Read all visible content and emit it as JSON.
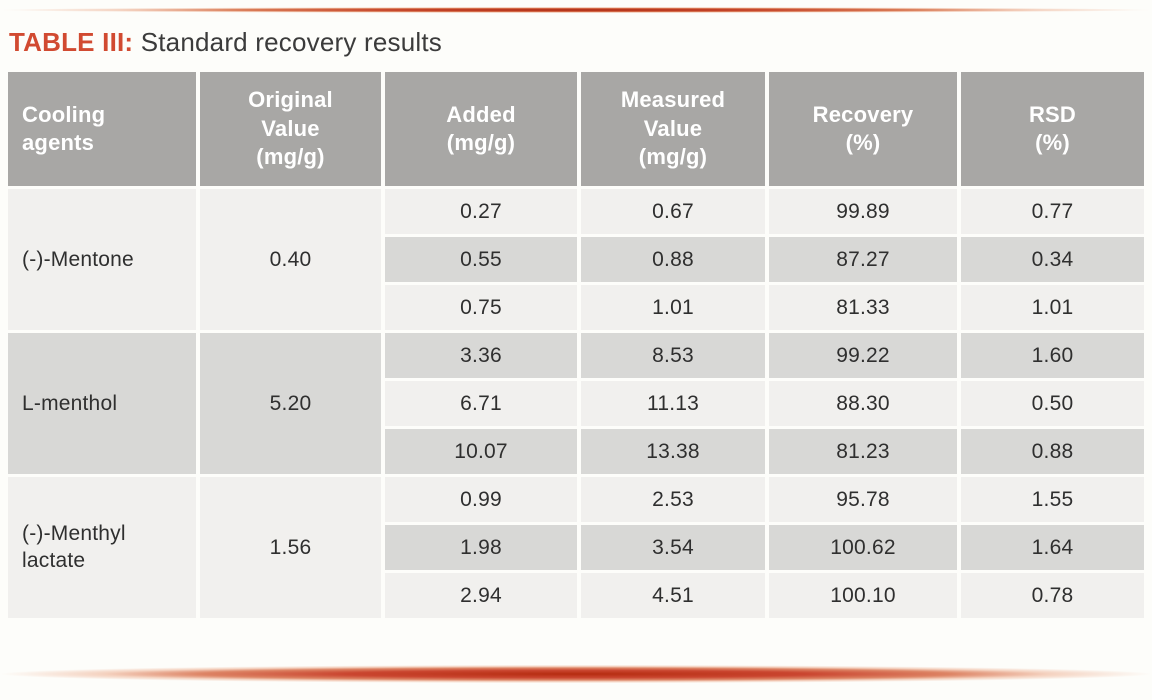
{
  "page": {
    "title": {
      "label": "TABLE III:",
      "text": "Standard recovery results"
    }
  },
  "colors": {
    "accent_red": "#d14a31",
    "header_bg": "#a8a7a5",
    "row_light": "#f1f0ee",
    "row_dark": "#d8d8d6",
    "title_text": "#3b3b3b",
    "cell_text": "#2f2f2f"
  },
  "table": {
    "columns": [
      {
        "id": "cooling_agents",
        "label": "Cooling\nagents"
      },
      {
        "id": "original_value",
        "label": "Original\nValue\n(mg/g)"
      },
      {
        "id": "added",
        "label": "Added\n(mg/g)"
      },
      {
        "id": "measured_value",
        "label": "Measured\nValue\n(mg/g)"
      },
      {
        "id": "recovery",
        "label": "Recovery\n(%)"
      },
      {
        "id": "rsd",
        "label": "RSD\n(%)"
      }
    ],
    "groups": [
      {
        "agent": "(-)-Mentone",
        "original_value": "0.40",
        "rows": [
          {
            "added": "0.27",
            "measured_value": "0.67",
            "recovery": "99.89",
            "rsd": "0.77"
          },
          {
            "added": "0.55",
            "measured_value": "0.88",
            "recovery": "87.27",
            "rsd": "0.34"
          },
          {
            "added": "0.75",
            "measured_value": "1.01",
            "recovery": "81.33",
            "rsd": "1.01"
          }
        ]
      },
      {
        "agent": "L-menthol",
        "original_value": "5.20",
        "rows": [
          {
            "added": "3.36",
            "measured_value": "8.53",
            "recovery": "99.22",
            "rsd": "1.60"
          },
          {
            "added": "6.71",
            "measured_value": "11.13",
            "recovery": "88.30",
            "rsd": "0.50"
          },
          {
            "added": "10.07",
            "measured_value": "13.38",
            "recovery": "81.23",
            "rsd": "0.88"
          }
        ]
      },
      {
        "agent": "(-)-Menthyl\nlactate",
        "original_value": "1.56",
        "rows": [
          {
            "added": "0.99",
            "measured_value": "2.53",
            "recovery": "95.78",
            "rsd": "1.55"
          },
          {
            "added": "1.98",
            "measured_value": "3.54",
            "recovery": "100.62",
            "rsd": "1.64"
          },
          {
            "added": "2.94",
            "measured_value": "4.51",
            "recovery": "100.10",
            "rsd": "0.78"
          }
        ]
      }
    ]
  },
  "chart_data": {
    "type": "table",
    "title": "TABLE III: Standard recovery results",
    "columns": [
      "Cooling agents",
      "Original Value (mg/g)",
      "Added (mg/g)",
      "Measured Value (mg/g)",
      "Recovery (%)",
      "RSD (%)"
    ],
    "rows": [
      [
        "(-)-Mentone",
        0.4,
        0.27,
        0.67,
        99.89,
        0.77
      ],
      [
        "(-)-Mentone",
        0.4,
        0.55,
        0.88,
        87.27,
        0.34
      ],
      [
        "(-)-Mentone",
        0.4,
        0.75,
        1.01,
        81.33,
        1.01
      ],
      [
        "L-menthol",
        5.2,
        3.36,
        8.53,
        99.22,
        1.6
      ],
      [
        "L-menthol",
        5.2,
        6.71,
        11.13,
        88.3,
        0.5
      ],
      [
        "L-menthol",
        5.2,
        10.07,
        13.38,
        81.23,
        0.88
      ],
      [
        "(-)-Menthyl lactate",
        1.56,
        0.99,
        2.53,
        95.78,
        1.55
      ],
      [
        "(-)-Menthyl lactate",
        1.56,
        1.98,
        3.54,
        100.62,
        1.64
      ],
      [
        "(-)-Menthyl lactate",
        1.56,
        2.94,
        4.51,
        100.1,
        0.78
      ]
    ]
  }
}
